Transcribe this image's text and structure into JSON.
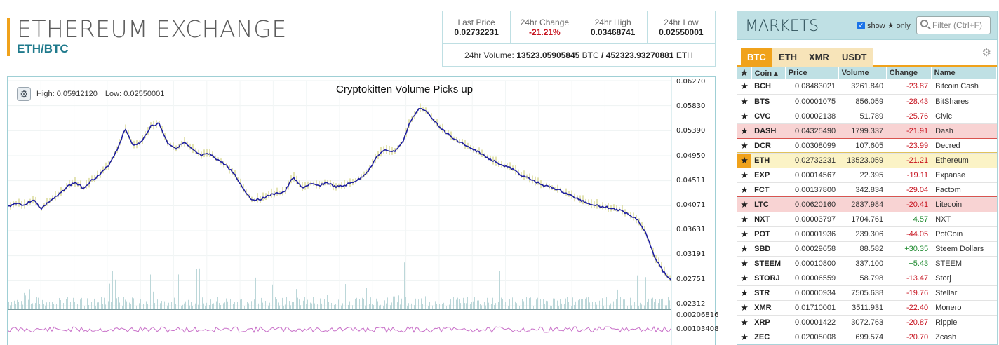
{
  "header": {
    "title": "ETHEREUM EXCHANGE",
    "pair": "ETH/BTC"
  },
  "stats": {
    "last_price_label": "Last Price",
    "last_price": "0.02732231",
    "change_label": "24hr Change",
    "change": "-21.21%",
    "high_label": "24hr High",
    "high": "0.03468741",
    "low_label": "24hr Low",
    "low": "0.02550001",
    "volume_label": "24hr Volume:",
    "volume_btc": "13523.05905845",
    "volume_btc_unit": "BTC",
    "volume_sep": "/",
    "volume_eth": "452323.93270881",
    "volume_eth_unit": "ETH"
  },
  "chart": {
    "headline": "Cryptokitten Volume Picks up",
    "high_label": "High: 0.05912120",
    "low_label": "Low: 0.02550001",
    "settings_icon": "gear-icon",
    "y_labels": [
      "0.06270",
      "0.05830",
      "0.05390",
      "0.04950",
      "0.04511",
      "0.04071",
      "0.03631",
      "0.03191",
      "0.02751",
      "0.02312"
    ],
    "sub_labels": [
      "0.00206816",
      "0.00103408"
    ],
    "colors": {
      "price_line": "#1f1f9e",
      "candles": "#c8c86a",
      "volume": "#bcd7d9",
      "oscillator": "#c86fc8"
    }
  },
  "chart_data": {
    "type": "line",
    "title": "Cryptokitten Volume Picks up",
    "ylim": [
      0.02312,
      0.0627
    ],
    "series": [
      {
        "values": [
          0.0405,
          0.0412,
          0.0408,
          0.0418,
          0.0402,
          0.0415,
          0.0425,
          0.044,
          0.0448,
          0.0438,
          0.0452,
          0.0462,
          0.0478,
          0.0505,
          0.0542,
          0.0512,
          0.052,
          0.0547,
          0.0552,
          0.0518,
          0.0508,
          0.0518,
          0.0505,
          0.0495,
          0.0498,
          0.0488,
          0.0478,
          0.0462,
          0.0438,
          0.0418,
          0.0418,
          0.0425,
          0.0428,
          0.0432,
          0.0458,
          0.0438,
          0.0445,
          0.0442,
          0.0448,
          0.044,
          0.0442,
          0.0448,
          0.0455,
          0.047,
          0.0495,
          0.0505,
          0.0502,
          0.0518,
          0.0558,
          0.0578,
          0.0572,
          0.0552,
          0.0538,
          0.0525,
          0.0518,
          0.0508,
          0.0502,
          0.0492,
          0.0485,
          0.0478,
          0.0472,
          0.0462,
          0.0455,
          0.0448,
          0.0442,
          0.0438,
          0.0432,
          0.0425,
          0.0418,
          0.0412,
          0.0408,
          0.0405,
          0.0402,
          0.0398,
          0.0392,
          0.0382,
          0.0358,
          0.0318,
          0.0292,
          0.0275
        ]
      }
    ]
  },
  "markets": {
    "title": "MARKETS",
    "show_label": "show",
    "only_label": "only",
    "search_placeholder": "Filter (Ctrl+F)",
    "tabs": [
      "BTC",
      "ETH",
      "XMR",
      "USDT"
    ],
    "columns": {
      "coin": "Coin",
      "price": "Price",
      "volume": "Volume",
      "change": "Change",
      "name": "Name"
    },
    "rows": [
      {
        "coin": "BCH",
        "price": "0.08483021",
        "volume": "3261.840",
        "change": "-23.87",
        "name": "Bitcoin Cash",
        "hl": ""
      },
      {
        "coin": "BTS",
        "price": "0.00001075",
        "volume": "856.059",
        "change": "-28.43",
        "name": "BitShares",
        "hl": ""
      },
      {
        "coin": "CVC",
        "price": "0.00002138",
        "volume": "51.789",
        "change": "-25.76",
        "name": "Civic",
        "hl": ""
      },
      {
        "coin": "DASH",
        "price": "0.04325490",
        "volume": "1799.337",
        "change": "-21.91",
        "name": "Dash",
        "hl": "red"
      },
      {
        "coin": "DCR",
        "price": "0.00308099",
        "volume": "107.605",
        "change": "-23.99",
        "name": "Decred",
        "hl": ""
      },
      {
        "coin": "ETH",
        "price": "0.02732231",
        "volume": "13523.059",
        "change": "-21.21",
        "name": "Ethereum",
        "hl": "yellow"
      },
      {
        "coin": "EXP",
        "price": "0.00014567",
        "volume": "22.395",
        "change": "-19.11",
        "name": "Expanse",
        "hl": ""
      },
      {
        "coin": "FCT",
        "price": "0.00137800",
        "volume": "342.834",
        "change": "-29.04",
        "name": "Factom",
        "hl": ""
      },
      {
        "coin": "LTC",
        "price": "0.00620160",
        "volume": "2837.984",
        "change": "-20.41",
        "name": "Litecoin",
        "hl": "red"
      },
      {
        "coin": "NXT",
        "price": "0.00003797",
        "volume": "1704.761",
        "change": "+4.57",
        "name": "NXT",
        "hl": ""
      },
      {
        "coin": "POT",
        "price": "0.00001936",
        "volume": "239.306",
        "change": "-44.05",
        "name": "PotCoin",
        "hl": ""
      },
      {
        "coin": "SBD",
        "price": "0.00029658",
        "volume": "88.582",
        "change": "+30.35",
        "name": "Steem Dollars",
        "hl": ""
      },
      {
        "coin": "STEEM",
        "price": "0.00010800",
        "volume": "337.100",
        "change": "+5.43",
        "name": "STEEM",
        "hl": ""
      },
      {
        "coin": "STORJ",
        "price": "0.00006559",
        "volume": "58.798",
        "change": "-13.47",
        "name": "Storj",
        "hl": ""
      },
      {
        "coin": "STR",
        "price": "0.00000934",
        "volume": "7505.638",
        "change": "-19.76",
        "name": "Stellar",
        "hl": ""
      },
      {
        "coin": "XMR",
        "price": "0.01710001",
        "volume": "3511.931",
        "change": "-22.40",
        "name": "Monero",
        "hl": ""
      },
      {
        "coin": "XRP",
        "price": "0.00001422",
        "volume": "3072.763",
        "change": "-20.87",
        "name": "Ripple",
        "hl": ""
      },
      {
        "coin": "ZEC",
        "price": "0.02005008",
        "volume": "699.574",
        "change": "-20.70",
        "name": "Zcash",
        "hl": ""
      }
    ]
  }
}
